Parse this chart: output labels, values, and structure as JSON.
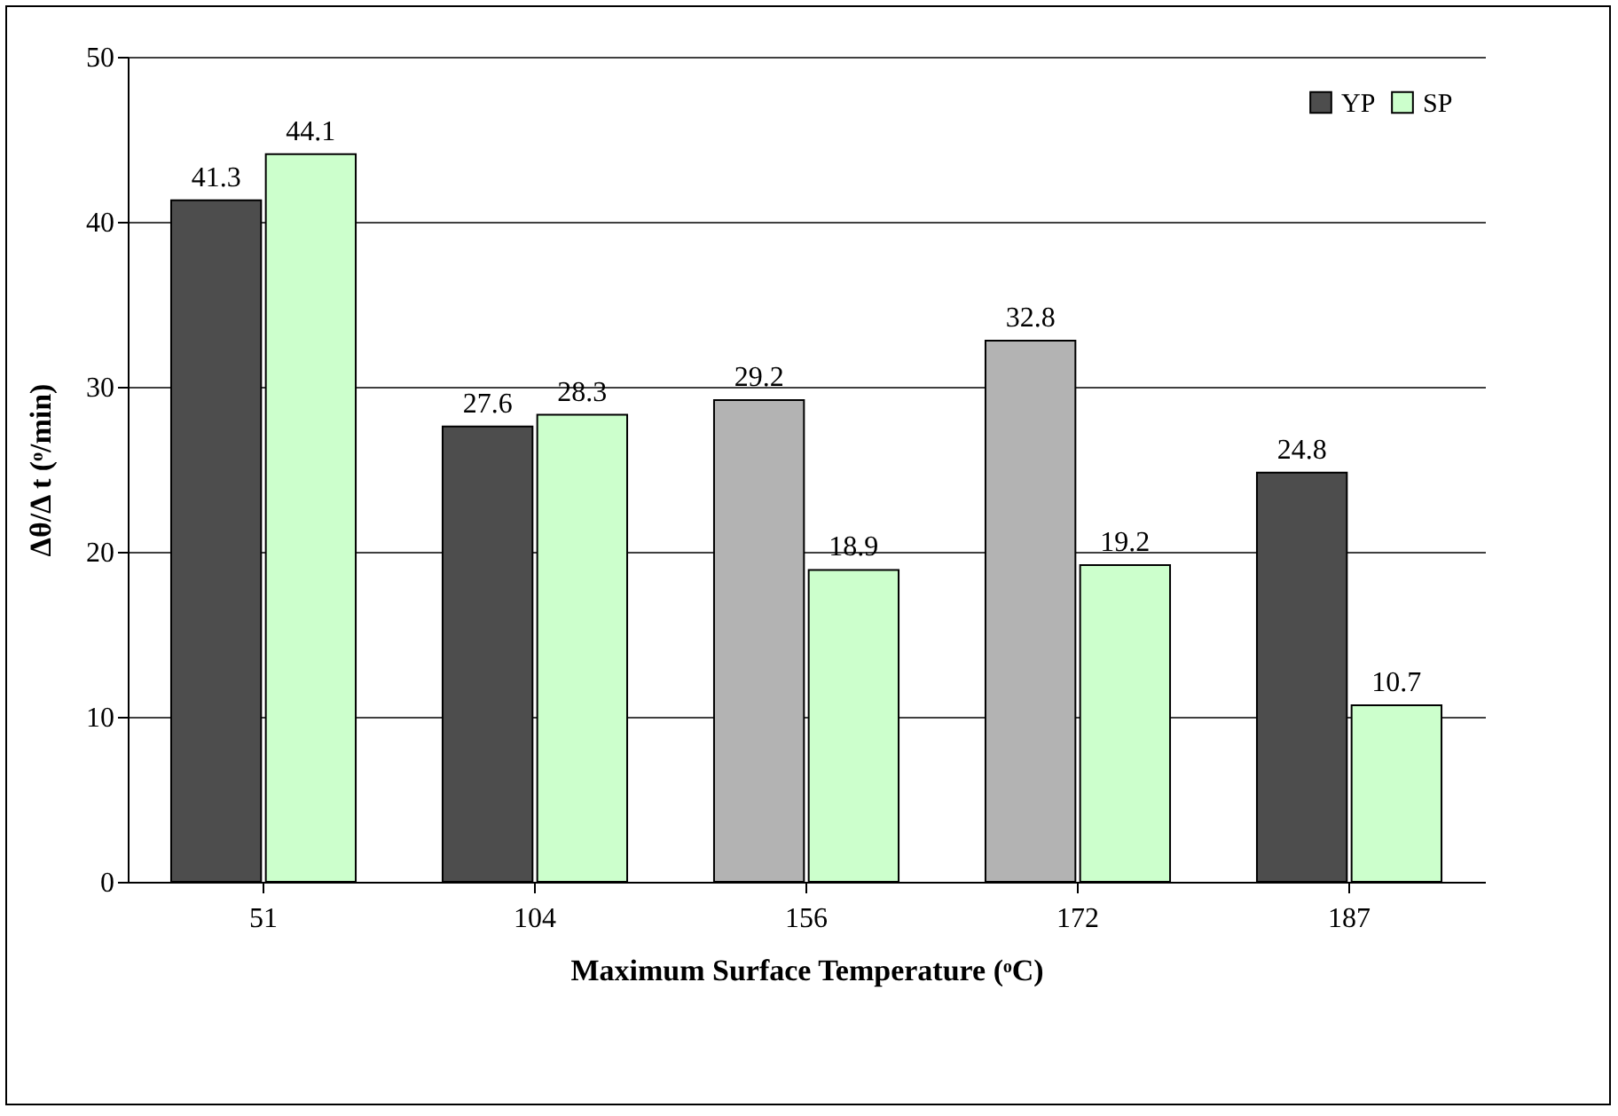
{
  "chart_data": {
    "type": "bar",
    "xlabel": "Maximum Surface Temperature (ᵒC)",
    "ylabel": "Δθ/Δ t (ᵒ/min)",
    "categories": [
      "51",
      "104",
      "156",
      "172",
      "187"
    ],
    "series": [
      {
        "name": "YP",
        "color": "#4d4d4d",
        "colors": [
          "#4d4d4d",
          "#4d4d4d",
          "#b3b3b3",
          "#b3b3b3",
          "#4d4d4d"
        ],
        "values": [
          41.3,
          27.6,
          29.2,
          32.8,
          24.8
        ]
      },
      {
        "name": "SP",
        "color": "#ccffcc",
        "values": [
          44.1,
          28.3,
          18.9,
          19.2,
          10.7
        ]
      }
    ],
    "ylim": [
      0,
      50
    ],
    "yticks": [
      0,
      10,
      20,
      30,
      40,
      50
    ],
    "grid": "y",
    "legend": "top right",
    "data_labels": true
  }
}
